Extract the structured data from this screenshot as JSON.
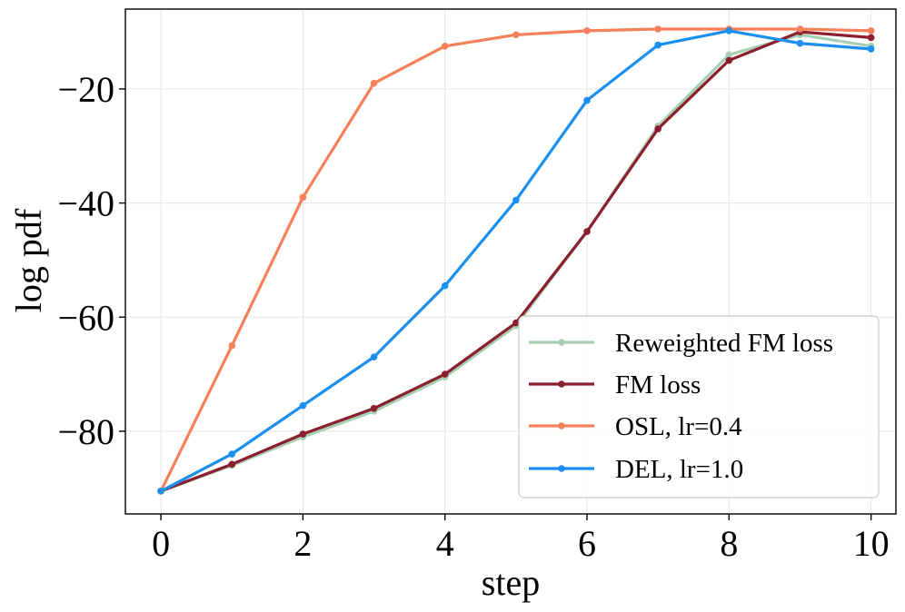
{
  "chart_data": {
    "type": "line",
    "title": "",
    "xlabel": "step",
    "ylabel": "log pdf",
    "xlim": [
      -0.5,
      10.35
    ],
    "ylim": [
      -94.5,
      -6
    ],
    "xticks": [
      0,
      2,
      4,
      6,
      8,
      10
    ],
    "yticks": [
      -20,
      -40,
      -60,
      -80
    ],
    "ytick_labels": [
      "−20",
      "−40",
      "−60",
      "−80"
    ],
    "grid": true,
    "legend_position": "lower-right",
    "x": [
      0,
      1,
      2,
      3,
      4,
      5,
      6,
      7,
      8,
      9,
      10
    ],
    "series": [
      {
        "name": "Reweighted FM loss",
        "color": "#a8cfb4",
        "values": [
          -90.5,
          -86.0,
          -81.0,
          -76.5,
          -70.5,
          -61.5,
          -45.0,
          -26.5,
          -14.0,
          -10.5,
          -12.5
        ]
      },
      {
        "name": "FM loss",
        "color": "#8b1f2e",
        "values": [
          -90.5,
          -85.8,
          -80.5,
          -76.0,
          -70.0,
          -61.0,
          -45.0,
          -27.0,
          -15.0,
          -10.0,
          -11.0
        ]
      },
      {
        "name": "OSL,  lr=0.4",
        "color": "#f5805a",
        "values": [
          -90.5,
          -65.0,
          -39.0,
          -19.0,
          -12.5,
          -10.5,
          -9.8,
          -9.5,
          -9.5,
          -9.5,
          -9.8
        ]
      },
      {
        "name": "DEL,  lr=1.0",
        "color": "#1a8ff0",
        "values": [
          -90.5,
          -84.0,
          -75.5,
          -67.0,
          -54.5,
          -39.5,
          -22.0,
          -12.3,
          -9.8,
          -12.0,
          -13.0
        ]
      }
    ]
  }
}
